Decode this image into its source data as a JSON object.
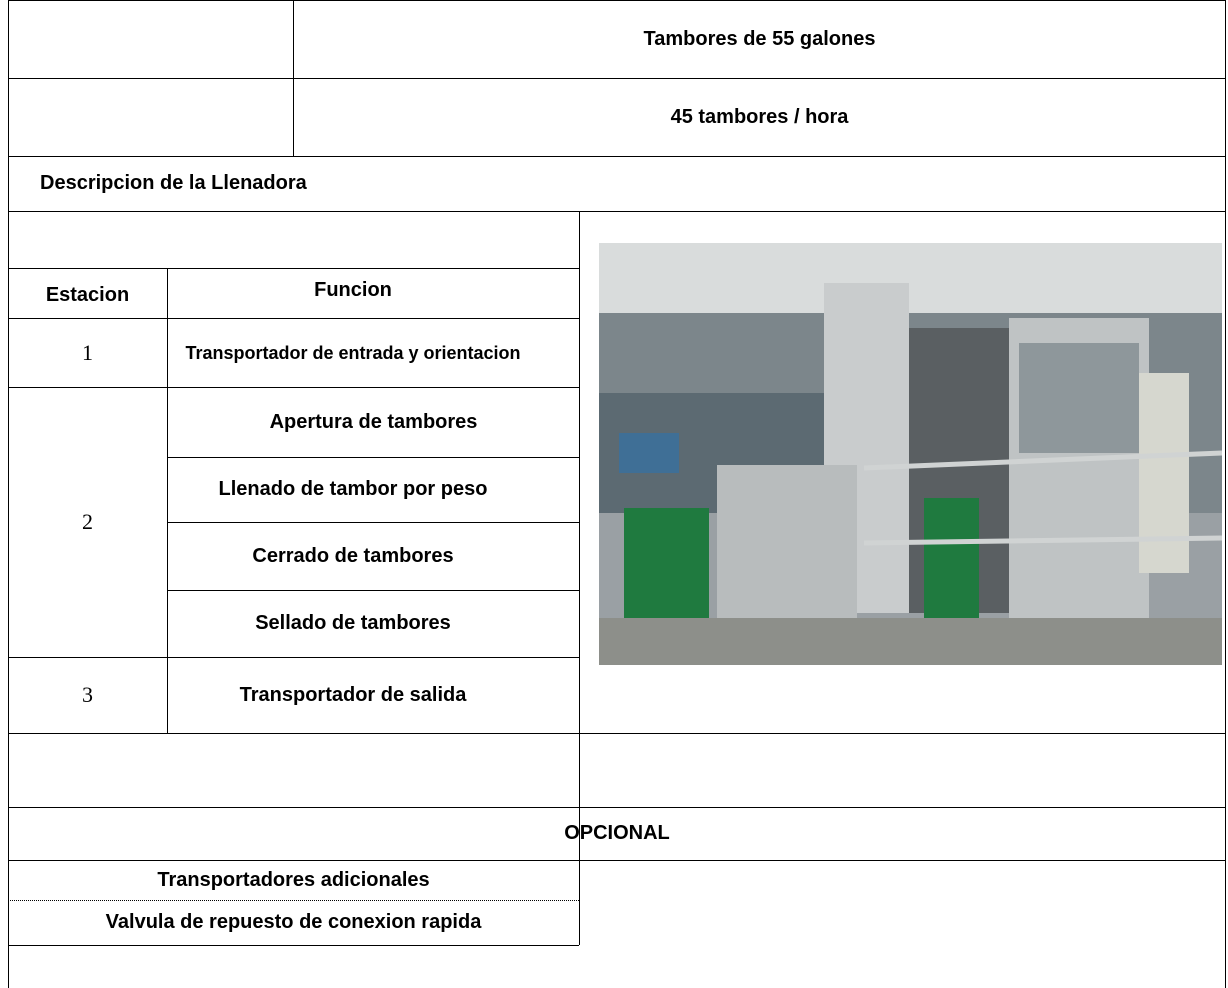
{
  "header": {
    "drum_type": "Tambores de 55 galones",
    "rate": "45 tambores / hora"
  },
  "section_title": "Descripcion de la Llenadora",
  "table": {
    "headers": [
      "Estacion",
      "Funcion"
    ],
    "stations": [
      {
        "number": "1",
        "functions": [
          "Transportador de entrada y orientacion"
        ]
      },
      {
        "number": "2",
        "functions": [
          "Apertura de tambores",
          "Llenado de tambor por peso",
          "Cerrado de tambores",
          "Sellado de tambores"
        ]
      },
      {
        "number": "3",
        "functions": [
          "Transportador de salida"
        ]
      }
    ]
  },
  "optional": {
    "title": "OPCIONAL",
    "items": [
      "Transportadores adicionales",
      "Valvula de repuesto de conexion rapida"
    ]
  }
}
